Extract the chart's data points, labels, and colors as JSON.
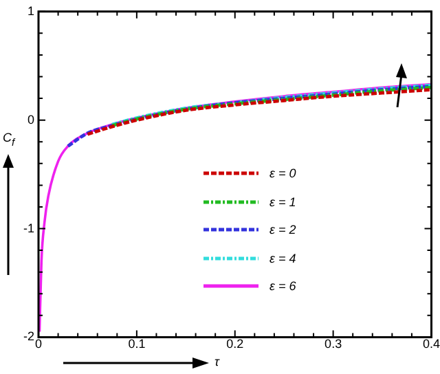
{
  "chart_data": {
    "type": "line",
    "xlabel": "τ",
    "ylabel": "C$_{f}$",
    "x": [
      0.001,
      0.003,
      0.006,
      0.01,
      0.02,
      0.03,
      0.05,
      0.075,
      0.1,
      0.15,
      0.2,
      0.25,
      0.3,
      0.35,
      0.4
    ],
    "series": [
      {
        "name": "ε = 0",
        "color": "#cc0000",
        "line_style": "dashed",
        "values": [
          null,
          null,
          null,
          null,
          null,
          null,
          -0.13,
          -0.06,
          0.0,
          0.09,
          0.14,
          0.18,
          0.22,
          0.25,
          0.28
        ]
      },
      {
        "name": "ε = 1",
        "color": "#22bb22",
        "line_style": "dashdot",
        "values": [
          null,
          null,
          null,
          null,
          null,
          null,
          null,
          -0.05,
          0.01,
          0.1,
          0.15,
          0.19,
          0.23,
          0.27,
          0.3
        ]
      },
      {
        "name": "ε = 2",
        "color": "#3333dd",
        "line_style": "dashed",
        "values": [
          null,
          null,
          null,
          null,
          null,
          -0.24,
          -0.12,
          -0.05,
          0.01,
          0.1,
          0.16,
          0.2,
          0.24,
          0.28,
          0.31
        ]
      },
      {
        "name": "ε = 4",
        "color": "#33dddd",
        "line_style": "dashdot",
        "values": [
          null,
          null,
          null,
          null,
          null,
          null,
          null,
          -0.04,
          0.02,
          0.11,
          0.16,
          0.21,
          0.25,
          0.29,
          0.32
        ]
      },
      {
        "name": "ε = 6",
        "color": "#ee22ee",
        "line_style": "solid",
        "values": [
          -1.95,
          -1.3,
          -0.95,
          -0.7,
          -0.38,
          -0.24,
          -0.12,
          -0.04,
          0.02,
          0.11,
          0.17,
          0.22,
          0.26,
          0.3,
          0.33
        ]
      }
    ],
    "xlim": [
      0,
      0.4
    ],
    "xticks": [
      0,
      {
        "value": 0.02,
        "label": null
      },
      {
        "value": 0.04,
        "label": null
      },
      {
        "value": 0.06,
        "label": null
      },
      {
        "value": 0.08,
        "label": null
      },
      0.1,
      {
        "value": 0.12,
        "label": null
      },
      {
        "value": 0.14,
        "label": null
      },
      {
        "value": 0.16,
        "label": null
      },
      {
        "value": 0.18,
        "label": null
      },
      0.2,
      {
        "value": 0.22,
        "label": null
      },
      {
        "value": 0.24,
        "label": null
      },
      {
        "value": 0.26,
        "label": null
      },
      {
        "value": 0.28,
        "label": null
      },
      0.3,
      {
        "value": 0.32,
        "label": null
      },
      {
        "value": 0.34,
        "label": null
      },
      {
        "value": 0.36,
        "label": null
      },
      {
        "value": 0.38,
        "label": null
      },
      0.4
    ],
    "ylim": [
      -2,
      1
    ],
    "yticks": [
      -2,
      {
        "value": -1.8,
        "label": null
      },
      {
        "value": -1.6,
        "label": null
      },
      {
        "value": -1.4,
        "label": null
      },
      {
        "value": -1.2,
        "label": null
      },
      -1,
      {
        "value": -0.8,
        "label": null
      },
      {
        "value": -0.6,
        "label": null
      },
      {
        "value": -0.4,
        "label": null
      },
      {
        "value": -0.2,
        "label": null
      },
      0,
      {
        "value": 0.2,
        "label": null
      },
      {
        "value": 0.4,
        "label": null
      },
      {
        "value": 0.6,
        "label": null
      },
      {
        "value": 0.8,
        "label": null
      },
      1
    ],
    "grid": false,
    "legend": "bottom",
    "marker": "none"
  }
}
